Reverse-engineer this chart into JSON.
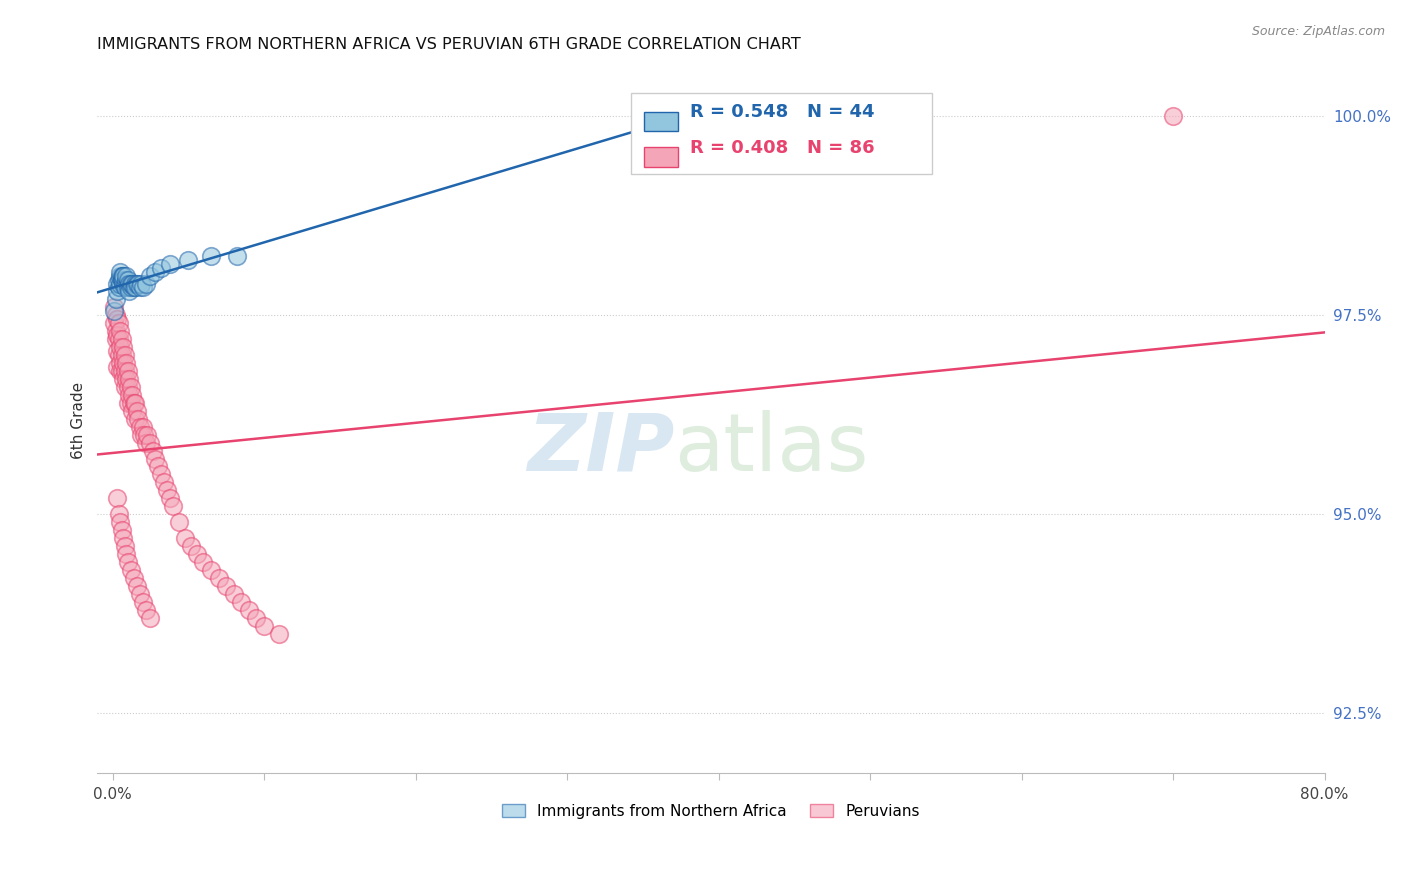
{
  "title": "IMMIGRANTS FROM NORTHERN AFRICA VS PERUVIAN 6TH GRADE CORRELATION CHART",
  "source": "Source: ZipAtlas.com",
  "ylabel": "6th Grade",
  "xlim": [
    -0.01,
    0.8
  ],
  "ylim": [
    0.9175,
    1.006
  ],
  "xtick_positions": [
    0.0,
    0.1,
    0.2,
    0.3,
    0.4,
    0.5,
    0.6,
    0.7,
    0.8
  ],
  "xticklabels": [
    "0.0%",
    "",
    "",
    "",
    "",
    "",
    "",
    "",
    "80.0%"
  ],
  "ytick_positions": [
    0.925,
    0.95,
    0.975,
    1.0
  ],
  "yticklabels": [
    "92.5%",
    "95.0%",
    "97.5%",
    "100.0%"
  ],
  "legend_label1": "Immigrants from Northern Africa",
  "legend_label2": "Peruvians",
  "R1": 0.548,
  "N1": 44,
  "R2": 0.408,
  "N2": 86,
  "color_blue": "#92c5de",
  "color_pink": "#f4a6b8",
  "color_blue_line": "#2166ac",
  "color_pink_line": "#e8436e",
  "blue_points_x": [
    0.001,
    0.002,
    0.003,
    0.003,
    0.004,
    0.004,
    0.005,
    0.005,
    0.005,
    0.006,
    0.006,
    0.006,
    0.007,
    0.007,
    0.007,
    0.007,
    0.008,
    0.008,
    0.009,
    0.009,
    0.01,
    0.01,
    0.01,
    0.011,
    0.011,
    0.012,
    0.012,
    0.013,
    0.014,
    0.015,
    0.015,
    0.016,
    0.017,
    0.018,
    0.019,
    0.02,
    0.022,
    0.025,
    0.028,
    0.032,
    0.038,
    0.05,
    0.065,
    0.082
  ],
  "blue_points_y": [
    0.9755,
    0.977,
    0.978,
    0.979,
    0.9785,
    0.9795,
    0.979,
    0.98,
    0.9805,
    0.9795,
    0.98,
    0.9795,
    0.979,
    0.98,
    0.9795,
    0.98,
    0.979,
    0.9785,
    0.9795,
    0.98,
    0.979,
    0.9795,
    0.9785,
    0.979,
    0.978,
    0.9785,
    0.979,
    0.979,
    0.9785,
    0.979,
    0.9785,
    0.979,
    0.979,
    0.9785,
    0.979,
    0.9785,
    0.979,
    0.98,
    0.9805,
    0.981,
    0.9815,
    0.982,
    0.9825,
    0.9825
  ],
  "pink_points_x": [
    0.001,
    0.001,
    0.002,
    0.002,
    0.002,
    0.003,
    0.003,
    0.003,
    0.003,
    0.004,
    0.004,
    0.004,
    0.005,
    0.005,
    0.005,
    0.005,
    0.006,
    0.006,
    0.006,
    0.007,
    0.007,
    0.007,
    0.008,
    0.008,
    0.008,
    0.009,
    0.009,
    0.01,
    0.01,
    0.01,
    0.011,
    0.011,
    0.012,
    0.012,
    0.013,
    0.013,
    0.014,
    0.015,
    0.015,
    0.016,
    0.017,
    0.018,
    0.019,
    0.02,
    0.021,
    0.022,
    0.023,
    0.025,
    0.027,
    0.028,
    0.03,
    0.032,
    0.034,
    0.036,
    0.038,
    0.04,
    0.044,
    0.048,
    0.052,
    0.056,
    0.06,
    0.065,
    0.07,
    0.075,
    0.08,
    0.085,
    0.09,
    0.095,
    0.1,
    0.11,
    0.003,
    0.004,
    0.005,
    0.006,
    0.007,
    0.008,
    0.009,
    0.01,
    0.012,
    0.014,
    0.016,
    0.018,
    0.02,
    0.022,
    0.025,
    0.7
  ],
  "pink_points_y": [
    0.976,
    0.974,
    0.975,
    0.973,
    0.972,
    0.9745,
    0.9725,
    0.9705,
    0.9685,
    0.974,
    0.972,
    0.97,
    0.973,
    0.971,
    0.969,
    0.968,
    0.972,
    0.97,
    0.968,
    0.971,
    0.969,
    0.967,
    0.97,
    0.968,
    0.966,
    0.969,
    0.967,
    0.968,
    0.966,
    0.964,
    0.967,
    0.965,
    0.966,
    0.964,
    0.965,
    0.963,
    0.964,
    0.964,
    0.962,
    0.963,
    0.962,
    0.961,
    0.96,
    0.961,
    0.96,
    0.959,
    0.96,
    0.959,
    0.958,
    0.957,
    0.956,
    0.955,
    0.954,
    0.953,
    0.952,
    0.951,
    0.949,
    0.947,
    0.946,
    0.945,
    0.944,
    0.943,
    0.942,
    0.941,
    0.94,
    0.939,
    0.938,
    0.937,
    0.936,
    0.935,
    0.952,
    0.95,
    0.949,
    0.948,
    0.947,
    0.946,
    0.945,
    0.944,
    0.943,
    0.942,
    0.941,
    0.94,
    0.939,
    0.938,
    0.937,
    1.0
  ]
}
